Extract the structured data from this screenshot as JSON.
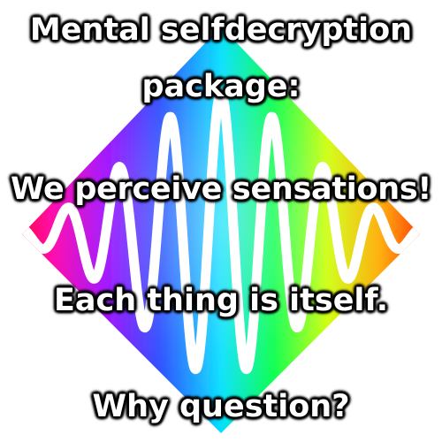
{
  "caption": {
    "line1": "Mental selfdecryption",
    "line2": "package:",
    "line3": "We perceive sensations!",
    "line4": "Each thing is itself.",
    "line5": "Why question?"
  },
  "artwork": {
    "icon": "rainbow-diamond-wave",
    "gradient_colors": [
      "#ff0000",
      "#ff8800",
      "#ffff00",
      "#00ff00",
      "#00ffff",
      "#0044ff",
      "#8800ff",
      "#ff00ff"
    ],
    "wave_color": "#ffffff"
  }
}
